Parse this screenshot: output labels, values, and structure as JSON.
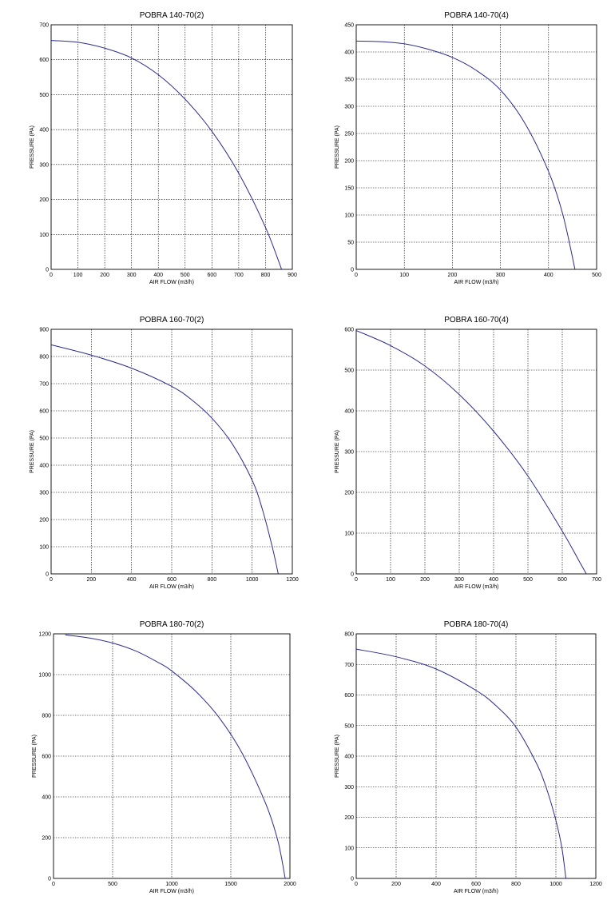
{
  "chart_data": [
    {
      "type": "line",
      "title": "POBRA 140-70(2)",
      "xlabel": "AIR FLOW (m3/h)",
      "ylabel": "PRESSURE (PA)",
      "xlim": [
        0,
        900
      ],
      "ylim": [
        0,
        700
      ],
      "xticks": [
        "0",
        "100",
        "200",
        "300",
        "400",
        "500",
        "600",
        "700",
        "800",
        "900"
      ],
      "yticks": [
        "0",
        "100",
        "200",
        "300",
        "400",
        "500",
        "600",
        "700"
      ],
      "grid": true,
      "series": [
        {
          "color": "#2b2b8c",
          "x": [
            0,
            100,
            200,
            300,
            400,
            500,
            600,
            700,
            800,
            860
          ],
          "y": [
            655,
            650,
            633,
            605,
            557,
            487,
            395,
            275,
            120,
            0
          ]
        }
      ]
    },
    {
      "type": "line",
      "title": "POBRA 140-70(4)",
      "xlabel": "AIR FLOW (m3/h)",
      "ylabel": "PRESSURE (PA)",
      "xlim": [
        0,
        500
      ],
      "ylim": [
        0,
        450
      ],
      "xticks": [
        "0",
        "100",
        "200",
        "300",
        "400",
        "500"
      ],
      "yticks": [
        "0",
        "50",
        "100",
        "150",
        "200",
        "250",
        "300",
        "350",
        "400",
        "450"
      ],
      "grid": true,
      "series": [
        {
          "color": "#2b2b8c",
          "x": [
            0,
            50,
            100,
            150,
            200,
            250,
            300,
            350,
            400,
            430,
            455
          ],
          "y": [
            420,
            419,
            415,
            405,
            390,
            366,
            330,
            270,
            180,
            100,
            0
          ]
        }
      ]
    },
    {
      "type": "line",
      "title": "POBRA 160-70(2)",
      "xlabel": "AIR FLOW (m3/h)",
      "ylabel": "PRESSURE (PA)",
      "xlim": [
        0,
        1200
      ],
      "ylim": [
        0,
        900
      ],
      "xticks": [
        "0",
        "200",
        "400",
        "600",
        "800",
        "1000",
        "1200"
      ],
      "yticks": [
        "0",
        "100",
        "200",
        "300",
        "400",
        "500",
        "600",
        "700",
        "800",
        "900"
      ],
      "grid": true,
      "series": [
        {
          "color": "#2b2b8c",
          "x": [
            0,
            200,
            400,
            600,
            700,
            800,
            900,
            1000,
            1050,
            1100,
            1130
          ],
          "y": [
            843,
            805,
            757,
            690,
            640,
            573,
            480,
            345,
            240,
            100,
            0
          ]
        }
      ]
    },
    {
      "type": "line",
      "title": "POBRA 160-70(4)",
      "xlabel": "AIR FLOW (m3/h)",
      "ylabel": "PRESSURE (PA)",
      "xlim": [
        0,
        700
      ],
      "ylim": [
        0,
        600
      ],
      "xticks": [
        "0",
        "100",
        "200",
        "300",
        "400",
        "500",
        "600",
        "700"
      ],
      "yticks": [
        "0",
        "100",
        "200",
        "300",
        "400",
        "500",
        "600"
      ],
      "grid": true,
      "series": [
        {
          "color": "#2b2b8c",
          "x": [
            0,
            100,
            200,
            300,
            400,
            500,
            600,
            650,
            670
          ],
          "y": [
            597,
            560,
            510,
            440,
            350,
            240,
            105,
            30,
            0
          ]
        }
      ]
    },
    {
      "type": "line",
      "title": "POBRA 180-70(2)",
      "xlabel": "AIR FLOW (m3/h)",
      "ylabel": "PRESSURE (PA)",
      "xlim": [
        0,
        2000
      ],
      "ylim": [
        0,
        1200
      ],
      "xticks": [
        "0",
        "500",
        "1000",
        "1500",
        "2000"
      ],
      "yticks": [
        "0",
        "200",
        "400",
        "600",
        "800",
        "1000",
        "1200"
      ],
      "grid": true,
      "series": [
        {
          "color": "#2b2b8c",
          "x": [
            100,
            300,
            500,
            700,
            900,
            1000,
            1200,
            1400,
            1600,
            1800,
            1900,
            1960
          ],
          "y": [
            1195,
            1180,
            1155,
            1115,
            1055,
            1018,
            920,
            790,
            610,
            360,
            180,
            0
          ]
        }
      ]
    },
    {
      "type": "line",
      "title": "POBRA 180-70(4)",
      "xlabel": "AIR FLOW (m3/h)",
      "ylabel": "PRESSURE (PA)",
      "xlim": [
        0,
        1200
      ],
      "ylim": [
        0,
        800
      ],
      "xticks": [
        "0",
        "200",
        "400",
        "600",
        "800",
        "1000",
        "1200"
      ],
      "yticks": [
        "0",
        "100",
        "200",
        "300",
        "400",
        "500",
        "600",
        "700",
        "800"
      ],
      "grid": true,
      "series": [
        {
          "color": "#2b2b8c",
          "x": [
            0,
            200,
            400,
            600,
            700,
            800,
            900,
            950,
            1000,
            1030,
            1050
          ],
          "y": [
            750,
            725,
            685,
            615,
            565,
            495,
            380,
            300,
            190,
            100,
            0
          ]
        }
      ]
    }
  ]
}
